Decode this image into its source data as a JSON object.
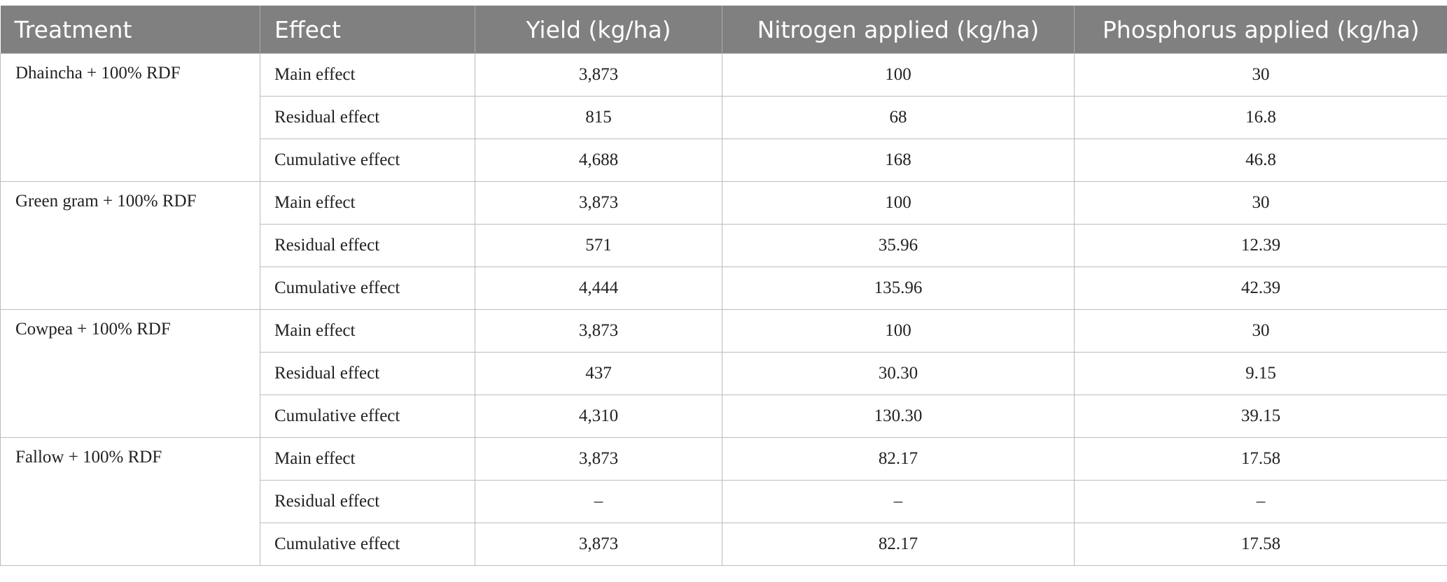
{
  "table": {
    "headers": [
      "Treatment",
      "Effect",
      "Yield (kg/ha)",
      "Nitrogen applied (kg/ha)",
      "Phosphorus applied (kg/ha)"
    ],
    "groups": [
      {
        "treatment": "Dhaincha + 100% RDF",
        "rows": [
          {
            "effect": "Main effect",
            "yield": "3,873",
            "nitrogen": "100",
            "phosphorus": "30"
          },
          {
            "effect": "Residual effect",
            "yield": "815",
            "nitrogen": "68",
            "phosphorus": "16.8"
          },
          {
            "effect": "Cumulative effect",
            "yield": "4,688",
            "nitrogen": "168",
            "phosphorus": "46.8"
          }
        ]
      },
      {
        "treatment": "Green gram + 100% RDF",
        "rows": [
          {
            "effect": "Main effect",
            "yield": "3,873",
            "nitrogen": "100",
            "phosphorus": "30"
          },
          {
            "effect": "Residual effect",
            "yield": "571",
            "nitrogen": "35.96",
            "phosphorus": "12.39"
          },
          {
            "effect": "Cumulative effect",
            "yield": "4,444",
            "nitrogen": "135.96",
            "phosphorus": "42.39"
          }
        ]
      },
      {
        "treatment": "Cowpea + 100% RDF",
        "rows": [
          {
            "effect": "Main effect",
            "yield": "3,873",
            "nitrogen": "100",
            "phosphorus": "30"
          },
          {
            "effect": "Residual effect",
            "yield": "437",
            "nitrogen": "30.30",
            "phosphorus": "9.15"
          },
          {
            "effect": "Cumulative effect",
            "yield": "4,310",
            "nitrogen": "130.30",
            "phosphorus": "39.15"
          }
        ]
      },
      {
        "treatment": "Fallow + 100% RDF",
        "rows": [
          {
            "effect": "Main effect",
            "yield": "3,873",
            "nitrogen": "82.17",
            "phosphorus": "17.58"
          },
          {
            "effect": "Residual effect",
            "yield": "–",
            "nitrogen": "–",
            "phosphorus": "–"
          },
          {
            "effect": "Cumulative effect",
            "yield": "3,873",
            "nitrogen": "82.17",
            "phosphorus": "17.58"
          }
        ]
      }
    ]
  },
  "colors": {
    "header_bg": "#7f807f",
    "header_text": "#ffffff",
    "grid": "#bcbcbc"
  }
}
